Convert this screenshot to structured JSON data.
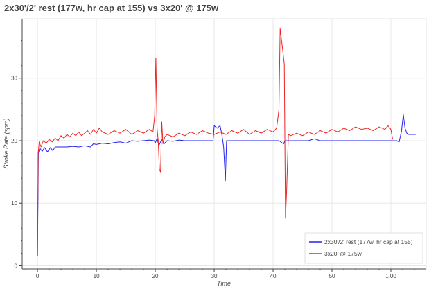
{
  "chart_data": {
    "type": "line",
    "title": "2x30'/2' rest (177w, hr cap at 155) vs 3x20' @ 175w",
    "xlabel": "Time",
    "ylabel": "Stroke Rate (spm)",
    "xlim": [
      -2.6,
      66.0
    ],
    "ylim": [
      -0.5,
      39.5
    ],
    "x_ticks": [
      {
        "value": 0,
        "label": "0"
      },
      {
        "value": 10,
        "label": "10"
      },
      {
        "value": 20,
        "label": "20"
      },
      {
        "value": 30,
        "label": "30"
      },
      {
        "value": 40,
        "label": "40"
      },
      {
        "value": 50,
        "label": "50"
      },
      {
        "value": 60,
        "label": "1:00"
      }
    ],
    "y_ticks": [
      {
        "value": 0,
        "label": "0"
      },
      {
        "value": 10,
        "label": "10"
      },
      {
        "value": 20,
        "label": "20"
      },
      {
        "value": 30,
        "label": "30"
      }
    ],
    "grid": true,
    "legend_position": "bottom-right",
    "series": [
      {
        "name": "2x30'/2' rest (177w, hr cap at 155)",
        "color": "#2222ee",
        "points": [
          [
            0,
            1.5
          ],
          [
            0.15,
            18.0
          ],
          [
            0.4,
            18.8
          ],
          [
            0.8,
            18.3
          ],
          [
            1.2,
            18.9
          ],
          [
            1.7,
            18.2
          ],
          [
            2.2,
            18.9
          ],
          [
            2.6,
            18.4
          ],
          [
            3.0,
            19.0
          ],
          [
            4.0,
            19.0
          ],
          [
            5.0,
            19.0
          ],
          [
            6.0,
            19.1
          ],
          [
            7.0,
            19.0
          ],
          [
            8.0,
            19.2
          ],
          [
            9.0,
            19.0
          ],
          [
            9.5,
            19.5
          ],
          [
            10.0,
            19.4
          ],
          [
            11.0,
            19.6
          ],
          [
            12.0,
            19.5
          ],
          [
            13.0,
            19.7
          ],
          [
            14.0,
            19.8
          ],
          [
            15.0,
            19.6
          ],
          [
            16.0,
            20.0
          ],
          [
            17.0,
            19.9
          ],
          [
            18.0,
            20.0
          ],
          [
            19.0,
            20.1
          ],
          [
            19.8,
            20.0
          ],
          [
            20.0,
            19.6
          ],
          [
            20.3,
            20.4
          ],
          [
            20.6,
            19.2
          ],
          [
            20.9,
            19.8
          ],
          [
            21.2,
            20.2
          ],
          [
            21.5,
            19.5
          ],
          [
            22.0,
            20.0
          ],
          [
            23.0,
            19.9
          ],
          [
            24.0,
            20.1
          ],
          [
            25.0,
            20.0
          ],
          [
            26.0,
            20.0
          ],
          [
            27.0,
            20.0
          ],
          [
            28.0,
            20.0
          ],
          [
            29.0,
            20.0
          ],
          [
            29.8,
            20.0
          ],
          [
            30.0,
            22.4
          ],
          [
            30.5,
            22.0
          ],
          [
            31.0,
            22.4
          ],
          [
            31.3,
            21.0
          ],
          [
            31.6,
            19.0
          ],
          [
            31.9,
            13.6
          ],
          [
            32.1,
            20.0
          ],
          [
            33.0,
            20.0
          ],
          [
            35.0,
            20.0
          ],
          [
            37.0,
            20.0
          ],
          [
            39.0,
            20.0
          ],
          [
            41.0,
            20.0
          ],
          [
            41.8,
            19.5
          ],
          [
            42.0,
            20.0
          ],
          [
            44.0,
            20.0
          ],
          [
            46.0,
            20.0
          ],
          [
            47.0,
            20.3
          ],
          [
            48.0,
            20.0
          ],
          [
            50.0,
            20.0
          ],
          [
            52.0,
            20.0
          ],
          [
            54.0,
            20.0
          ],
          [
            56.0,
            20.0
          ],
          [
            58.0,
            20.0
          ],
          [
            60.0,
            20.0
          ],
          [
            61.0,
            20.0
          ],
          [
            61.4,
            19.8
          ],
          [
            61.8,
            21.5
          ],
          [
            62.1,
            24.2
          ],
          [
            62.4,
            22.0
          ],
          [
            62.7,
            21.2
          ],
          [
            63.0,
            21.0
          ],
          [
            64.2,
            21.0
          ]
        ]
      },
      {
        "name": "3x20' @ 175w",
        "color": "#ee2222",
        "points": [
          [
            0,
            1.5
          ],
          [
            0.12,
            18.0
          ],
          [
            0.3,
            19.8
          ],
          [
            0.6,
            19.0
          ],
          [
            1.0,
            20.0
          ],
          [
            1.5,
            19.6
          ],
          [
            2.0,
            20.2
          ],
          [
            2.5,
            19.8
          ],
          [
            3.0,
            20.4
          ],
          [
            3.5,
            20.0
          ],
          [
            4.0,
            20.8
          ],
          [
            4.5,
            20.4
          ],
          [
            5.0,
            21.0
          ],
          [
            5.5,
            20.6
          ],
          [
            6.0,
            21.2
          ],
          [
            6.5,
            20.8
          ],
          [
            7.0,
            21.4
          ],
          [
            7.5,
            20.8
          ],
          [
            8.0,
            21.2
          ],
          [
            8.5,
            21.6
          ],
          [
            9.0,
            21.0
          ],
          [
            9.5,
            21.8
          ],
          [
            10.0,
            21.2
          ],
          [
            10.5,
            22.0
          ],
          [
            11.0,
            21.4
          ],
          [
            12.0,
            21.0
          ],
          [
            13.0,
            21.6
          ],
          [
            14.0,
            21.2
          ],
          [
            15.0,
            21.8
          ],
          [
            16.0,
            21.0
          ],
          [
            17.0,
            21.6
          ],
          [
            18.0,
            21.2
          ],
          [
            19.0,
            21.8
          ],
          [
            19.6,
            21.4
          ],
          [
            19.9,
            24.0
          ],
          [
            20.1,
            33.2
          ],
          [
            20.3,
            22.0
          ],
          [
            20.5,
            20.0
          ],
          [
            20.7,
            15.4
          ],
          [
            20.9,
            15.0
          ],
          [
            21.1,
            23.0
          ],
          [
            21.3,
            19.5
          ],
          [
            21.6,
            20.6
          ],
          [
            22.0,
            21.0
          ],
          [
            23.0,
            20.6
          ],
          [
            24.0,
            21.2
          ],
          [
            25.0,
            20.8
          ],
          [
            26.0,
            21.4
          ],
          [
            27.0,
            21.0
          ],
          [
            28.0,
            21.6
          ],
          [
            29.0,
            21.2
          ],
          [
            30.0,
            21.0
          ],
          [
            31.0,
            21.4
          ],
          [
            32.0,
            21.0
          ],
          [
            33.0,
            21.6
          ],
          [
            34.0,
            21.2
          ],
          [
            35.0,
            21.8
          ],
          [
            36.0,
            21.0
          ],
          [
            37.0,
            21.6
          ],
          [
            38.0,
            21.2
          ],
          [
            39.0,
            21.8
          ],
          [
            40.0,
            21.4
          ],
          [
            40.6,
            22.0
          ],
          [
            41.0,
            25.0
          ],
          [
            41.2,
            37.9
          ],
          [
            41.6,
            34.8
          ],
          [
            41.9,
            32.2
          ],
          [
            42.1,
            7.6
          ],
          [
            42.3,
            12.0
          ],
          [
            42.6,
            21.0
          ],
          [
            43.0,
            20.8
          ],
          [
            44.0,
            21.2
          ],
          [
            45.0,
            20.8
          ],
          [
            46.0,
            21.4
          ],
          [
            47.0,
            21.0
          ],
          [
            48.0,
            21.6
          ],
          [
            49.0,
            21.2
          ],
          [
            50.0,
            21.8
          ],
          [
            51.0,
            21.4
          ],
          [
            52.0,
            22.0
          ],
          [
            53.0,
            21.6
          ],
          [
            54.0,
            22.2
          ],
          [
            55.0,
            21.8
          ],
          [
            56.0,
            22.0
          ],
          [
            57.0,
            21.6
          ],
          [
            58.0,
            22.2
          ],
          [
            59.0,
            21.8
          ],
          [
            59.5,
            22.4
          ],
          [
            60.0,
            21.8
          ],
          [
            60.3,
            20.2
          ]
        ]
      }
    ]
  }
}
